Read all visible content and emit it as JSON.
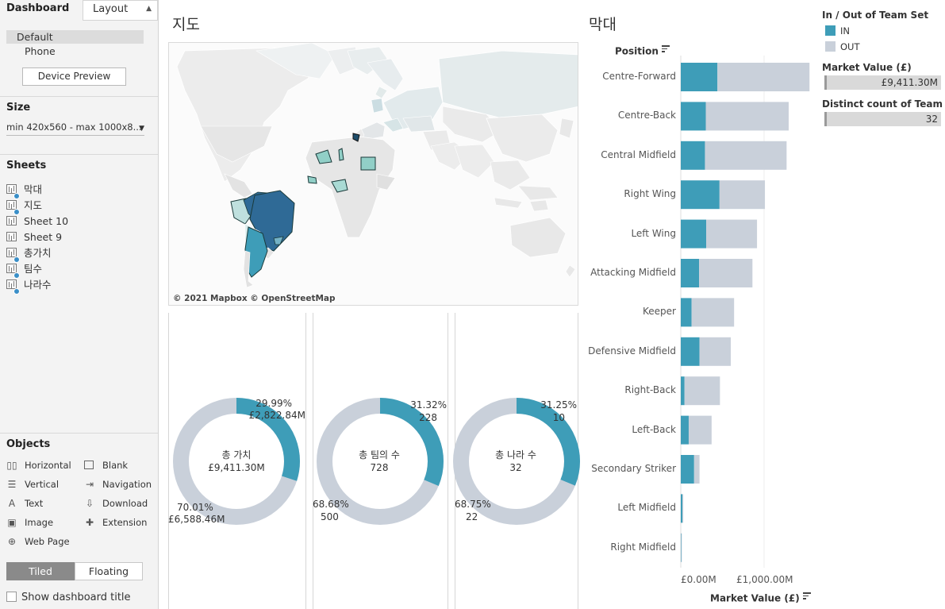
{
  "sidebar": {
    "tab_dashboard": "Dashboard",
    "tab_layout": "Layout",
    "devices": [
      "Default",
      "Phone"
    ],
    "device_preview": "Device Preview",
    "size_title": "Size",
    "size_value": "min 420x560 - max 1000x8...",
    "sheets_title": "Sheets",
    "sheets": [
      {
        "label": "막대",
        "used": true
      },
      {
        "label": "지도",
        "used": true
      },
      {
        "label": "Sheet 10",
        "used": false
      },
      {
        "label": "Sheet 9",
        "used": false
      },
      {
        "label": "총가치",
        "used": true
      },
      {
        "label": "팀수",
        "used": true
      },
      {
        "label": "나라수",
        "used": true
      }
    ],
    "objects_title": "Objects",
    "objects": [
      {
        "label": "Horizontal",
        "icon": "horizontal-icon"
      },
      {
        "label": "Blank",
        "icon": "blank-icon"
      },
      {
        "label": "Vertical",
        "icon": "vertical-icon"
      },
      {
        "label": "Navigation",
        "icon": "navigation-icon"
      },
      {
        "label": "Text",
        "icon": "text-icon"
      },
      {
        "label": "Download",
        "icon": "download-icon"
      },
      {
        "label": "Image",
        "icon": "image-icon"
      },
      {
        "label": "Extension",
        "icon": "extension-icon"
      },
      {
        "label": "Web Page",
        "icon": "globe-icon"
      }
    ],
    "tiled": "Tiled",
    "floating": "Floating",
    "show_title": "Show dashboard title"
  },
  "map": {
    "title": "지도",
    "attribution": "© 2021 Mapbox © OpenStreetMap"
  },
  "donuts": [
    {
      "center_label": "총 가치",
      "center_value": "£9,411.30M",
      "in_pct": "29.99%",
      "in_value": "£2,822.84M",
      "out_pct": "70.01%",
      "out_value": "£6,588.46M",
      "fraction": 0.2999
    },
    {
      "center_label": "총 팀의 수",
      "center_value": "728",
      "in_pct": "31.32%",
      "in_value": "228",
      "out_pct": "68.68%",
      "out_value": "500",
      "fraction": 0.3132
    },
    {
      "center_label": "총 나라 수",
      "center_value": "32",
      "in_pct": "31.25%",
      "in_value": "10",
      "out_pct": "68.75%",
      "out_value": "22",
      "fraction": 0.3125
    }
  ],
  "bar": {
    "title": "막대",
    "row_header": "Position",
    "x_label": "Market Value (£)",
    "ticks": [
      "£0.00M",
      "£1,000.00M"
    ]
  },
  "legend": {
    "title": "In / Out of Team Set",
    "items": [
      {
        "label": "IN",
        "color": "#3e9db8"
      },
      {
        "label": "OUT",
        "color": "#c9d0da"
      }
    ],
    "filter1_title": "Market Value (£)",
    "filter1_value": "£9,411.30M",
    "filter2_title": "Distinct count of Team",
    "filter2_value": "32"
  },
  "colors": {
    "in": "#3e9db8",
    "out": "#c9d0da",
    "map_dark": "#2f6a96"
  },
  "chart_data": {
    "type": "bar",
    "stacked": true,
    "orientation": "horizontal",
    "categories": [
      "Centre-Forward",
      "Centre-Back",
      "Central Midfield",
      "Right Wing",
      "Left Wing",
      "Attacking Midfield",
      "Keeper",
      "Defensive Midfield",
      "Right-Back",
      "Left-Back",
      "Secondary Striker",
      "Left Midfield",
      "Right Midfield"
    ],
    "series": [
      {
        "name": "IN",
        "values": [
          440,
          300,
          290,
          465,
          305,
          220,
          130,
          225,
          45,
          95,
          160,
          20,
          5
        ]
      },
      {
        "name": "OUT",
        "values": [
          1105,
          995,
          980,
          545,
          610,
          640,
          510,
          375,
          425,
          275,
          65,
          10,
          8
        ]
      }
    ],
    "xlabel": "Market Value (£)",
    "xlim": [
      0,
      1700
    ]
  }
}
